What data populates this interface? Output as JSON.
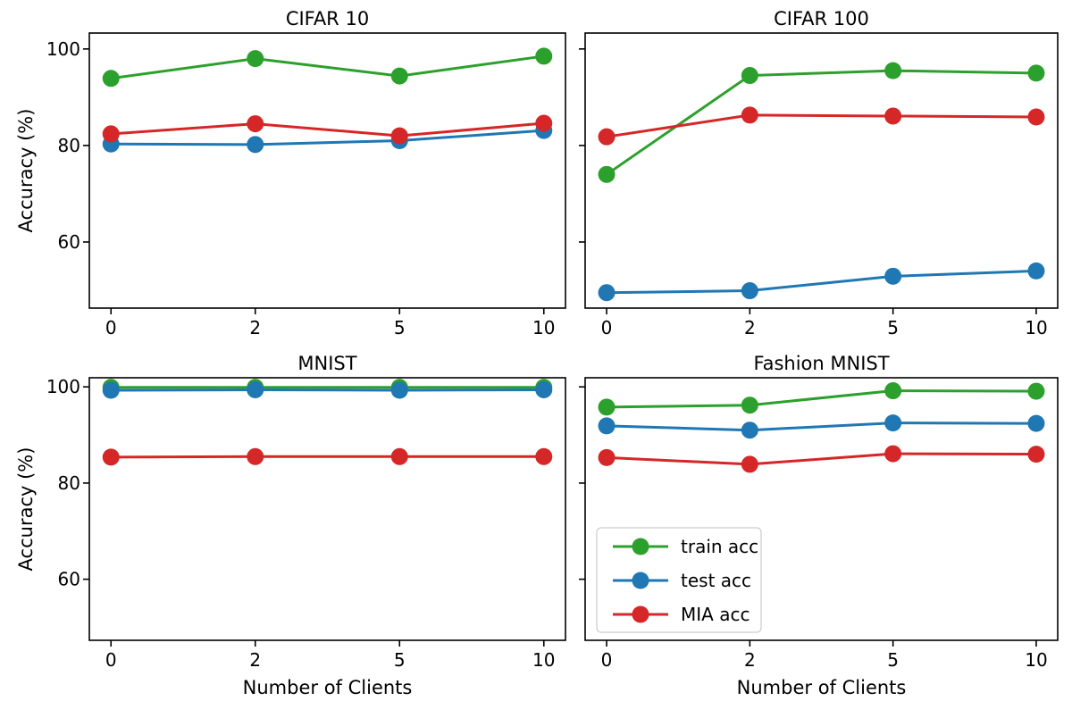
{
  "figure": {
    "background": "#ffffff",
    "xlabel": "Number of Clients",
    "ylabel": "Accuracy (%)"
  },
  "legend": {
    "location": "lower left of Fashion MNIST panel",
    "entries": [
      {
        "label": "train acc",
        "color": "#2ca02c"
      },
      {
        "label": "test acc",
        "color": "#1f77b4"
      },
      {
        "label": "MIA acc",
        "color": "#d62728"
      }
    ]
  },
  "chart_data": [
    {
      "type": "line",
      "title": "CIFAR 10",
      "xlabel": "",
      "ylabel": "Accuracy (%)",
      "categories": [
        "0",
        "2",
        "5",
        "10"
      ],
      "yticks": [
        60,
        80,
        100
      ],
      "ylim": [
        46.3,
        103.3
      ],
      "grid": false,
      "marker": "o",
      "series": [
        {
          "name": "train acc",
          "color": "#2ca02c",
          "values": [
            93.9,
            98.0,
            94.4,
            98.5
          ]
        },
        {
          "name": "test acc",
          "color": "#1f77b4",
          "values": [
            80.3,
            80.2,
            81.0,
            83.1
          ]
        },
        {
          "name": "MIA acc",
          "color": "#d62728",
          "values": [
            82.4,
            84.5,
            82.0,
            84.6
          ]
        }
      ]
    },
    {
      "type": "line",
      "title": "CIFAR 100",
      "xlabel": "",
      "ylabel": "",
      "categories": [
        "0",
        "2",
        "5",
        "10"
      ],
      "yticks": [
        60,
        80,
        100
      ],
      "ylim": [
        46.3,
        103.3
      ],
      "grid": false,
      "marker": "o",
      "series": [
        {
          "name": "train acc",
          "color": "#2ca02c",
          "values": [
            74.0,
            94.5,
            95.5,
            95.0
          ]
        },
        {
          "name": "test acc",
          "color": "#1f77b4",
          "values": [
            49.5,
            49.9,
            52.9,
            54.0
          ]
        },
        {
          "name": "MIA acc",
          "color": "#d62728",
          "values": [
            81.8,
            86.3,
            86.1,
            85.9
          ]
        }
      ]
    },
    {
      "type": "line",
      "title": "MNIST",
      "xlabel": "Number of Clients",
      "ylabel": "Accuracy (%)",
      "categories": [
        "0",
        "2",
        "5",
        "10"
      ],
      "yticks": [
        60,
        80,
        100
      ],
      "ylim": [
        47.3,
        101.9
      ],
      "grid": false,
      "marker": "o",
      "series": [
        {
          "name": "train acc",
          "color": "#2ca02c",
          "values": [
            99.9,
            99.9,
            99.9,
            99.9
          ]
        },
        {
          "name": "test acc",
          "color": "#1f77b4",
          "values": [
            99.3,
            99.4,
            99.3,
            99.4
          ]
        },
        {
          "name": "MIA acc",
          "color": "#d62728",
          "values": [
            85.4,
            85.5,
            85.5,
            85.5
          ]
        }
      ]
    },
    {
      "type": "line",
      "title": "Fashion MNIST",
      "xlabel": "Number of Clients",
      "ylabel": "",
      "categories": [
        "0",
        "2",
        "5",
        "10"
      ],
      "yticks": [
        60,
        80,
        100
      ],
      "ylim": [
        47.3,
        101.9
      ],
      "grid": false,
      "marker": "o",
      "legend": true,
      "series": [
        {
          "name": "train acc",
          "color": "#2ca02c",
          "values": [
            95.8,
            96.2,
            99.2,
            99.1
          ]
        },
        {
          "name": "test acc",
          "color": "#1f77b4",
          "values": [
            91.9,
            91.0,
            92.5,
            92.4
          ]
        },
        {
          "name": "MIA acc",
          "color": "#d62728",
          "values": [
            85.3,
            83.9,
            86.1,
            86.0
          ]
        }
      ]
    }
  ]
}
